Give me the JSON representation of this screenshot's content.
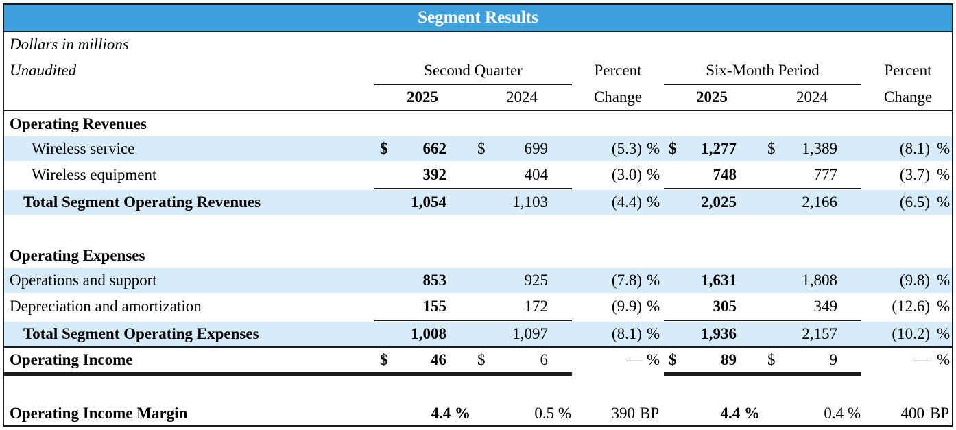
{
  "title": "Segment Results",
  "subtitle1": "Dollars in millions",
  "subtitle2": "Unaudited",
  "headers": {
    "second_quarter": "Second Quarter",
    "six_month": "Six-Month Period",
    "percent": "Percent",
    "change": "Change",
    "y2025": "2025",
    "y2024": "2024"
  },
  "symbols": {
    "dollar": "$",
    "pct": "%",
    "bp": "BP"
  },
  "sections": {
    "revenues": "Operating Revenues",
    "expenses": "Operating Expenses"
  },
  "rows": {
    "wireless_service": {
      "label": "Wireless service",
      "q2025": "662",
      "q2024": "699",
      "qchg": "(5.3)",
      "s2025": "1,277",
      "s2024": "1,389",
      "schg": "(8.1)"
    },
    "wireless_equipment": {
      "label": "Wireless equipment",
      "q2025": "392",
      "q2024": "404",
      "qchg": "(3.0)",
      "s2025": "748",
      "s2024": "777",
      "schg": "(3.7)"
    },
    "total_revenues": {
      "label": "Total Segment Operating Revenues",
      "q2025": "1,054",
      "q2024": "1,103",
      "qchg": "(4.4)",
      "s2025": "2,025",
      "s2024": "2,166",
      "schg": "(6.5)"
    },
    "operations_support": {
      "label": "Operations and support",
      "q2025": "853",
      "q2024": "925",
      "qchg": "(7.8)",
      "s2025": "1,631",
      "s2024": "1,808",
      "schg": "(9.8)"
    },
    "depreciation": {
      "label": "Depreciation and amortization",
      "q2025": "155",
      "q2024": "172",
      "qchg": "(9.9)",
      "s2025": "305",
      "s2024": "349",
      "schg": "(12.6)"
    },
    "total_expenses": {
      "label": "Total Segment Operating Expenses",
      "q2025": "1,008",
      "q2024": "1,097",
      "qchg": "(8.1)",
      "s2025": "1,936",
      "s2024": "2,157",
      "schg": "(10.2)"
    },
    "operating_income": {
      "label": "Operating Income",
      "q2025": "46",
      "q2024": "6",
      "qchg": "—",
      "s2025": "89",
      "s2024": "9",
      "schg": "—"
    },
    "margin": {
      "label": "Operating Income Margin",
      "q2025": "4.4 %",
      "q2024": "0.5 %",
      "qchg": "390",
      "s2025": "4.4 %",
      "s2024": "0.4 %",
      "schg": "400"
    }
  }
}
